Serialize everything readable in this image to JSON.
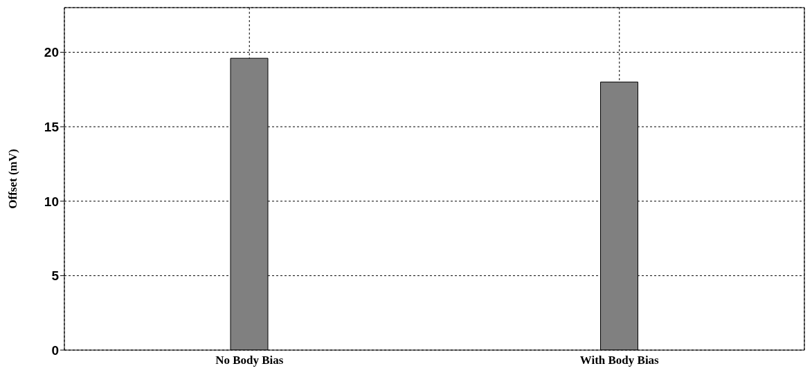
{
  "chart_data": {
    "type": "bar",
    "categories": [
      "No Body Bias",
      "With Body Bias"
    ],
    "values": [
      19.6,
      18.0
    ],
    "color": "#808080",
    "ylabel": "Offset (mV)",
    "ylim": [
      0,
      23
    ],
    "yticks": [
      0,
      5,
      10,
      15,
      20
    ],
    "grid": true
  }
}
